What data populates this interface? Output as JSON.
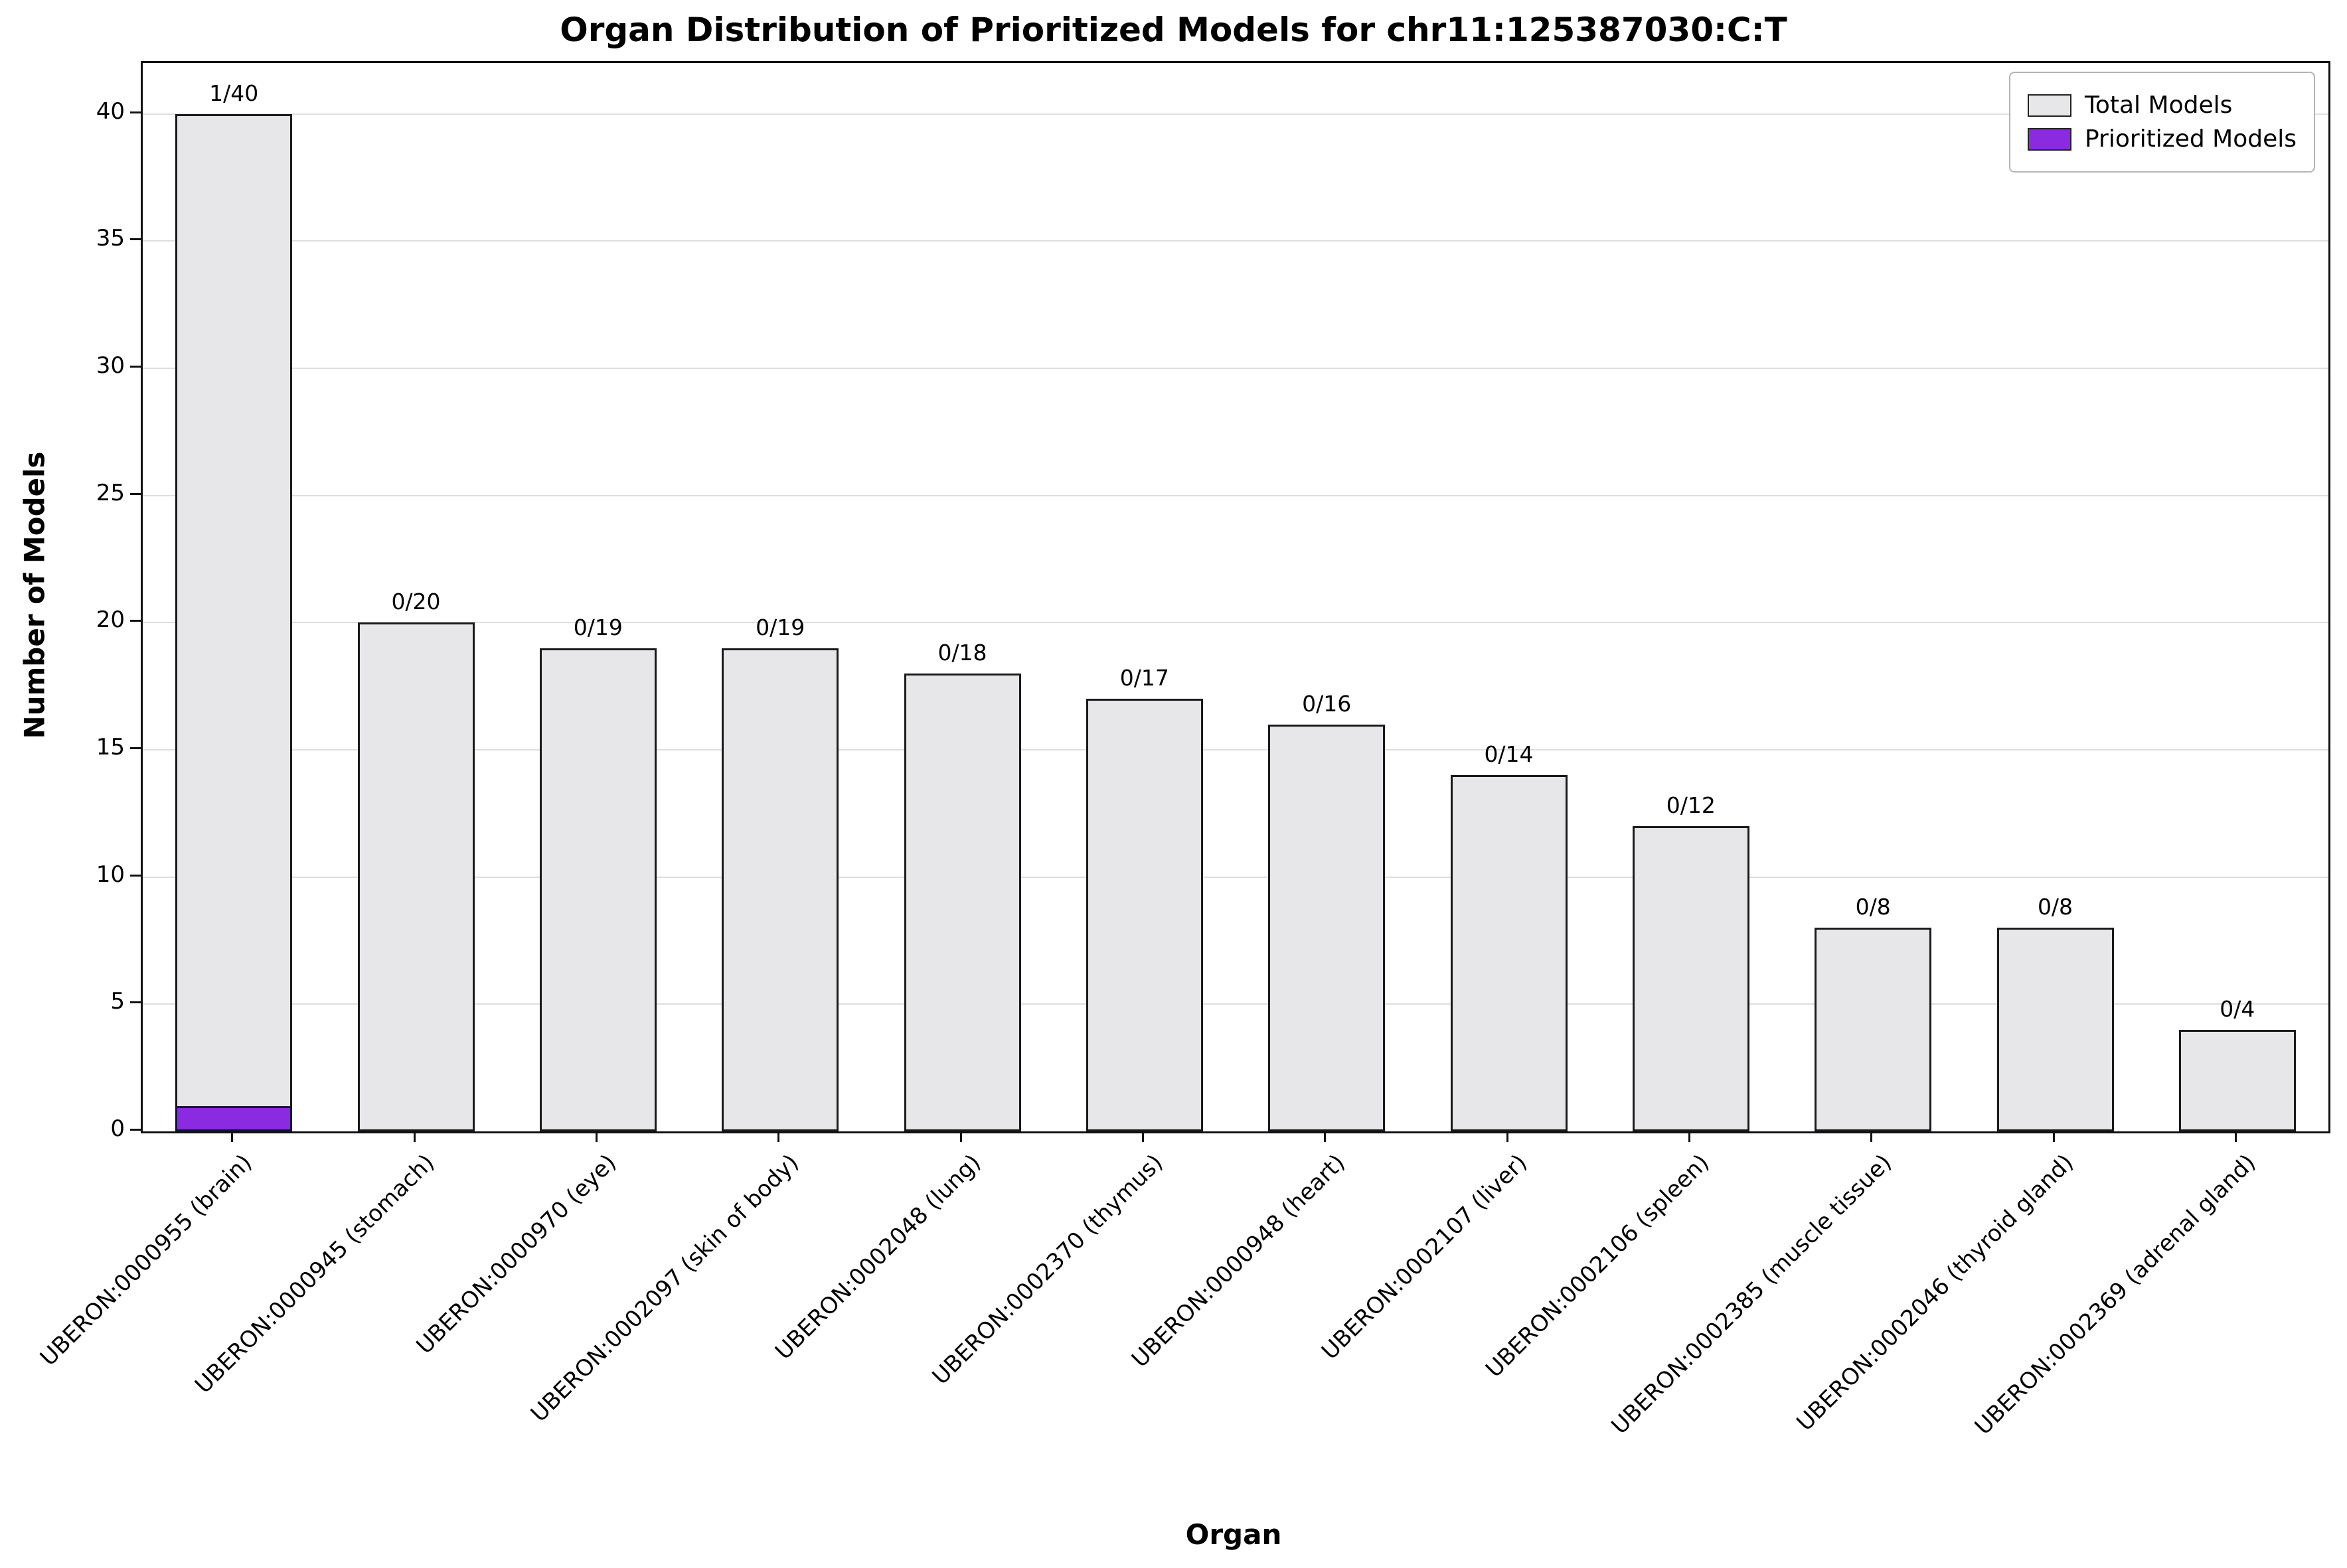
{
  "chart_data": {
    "type": "bar",
    "title": "Organ Distribution of Prioritized Models for chr11:125387030:C:T",
    "xlabel": "Organ",
    "ylabel": "Number of Models",
    "ylim": [
      0,
      42
    ],
    "yticks": [
      0,
      5,
      10,
      15,
      20,
      25,
      30,
      35,
      40
    ],
    "grid": true,
    "categories": [
      "UBERON:0000955 (brain)",
      "UBERON:0000945 (stomach)",
      "UBERON:0000970 (eye)",
      "UBERON:0002097 (skin of body)",
      "UBERON:0002048 (lung)",
      "UBERON:0002370 (thymus)",
      "UBERON:0000948 (heart)",
      "UBERON:0002107 (liver)",
      "UBERON:0002106 (spleen)",
      "UBERON:0002385 (muscle tissue)",
      "UBERON:0002046 (thyroid gland)",
      "UBERON:0002369 (adrenal gland)"
    ],
    "series": [
      {
        "name": "Total Models",
        "color": "#e7e7ea",
        "values": [
          40,
          20,
          19,
          19,
          18,
          17,
          16,
          14,
          12,
          8,
          8,
          4
        ]
      },
      {
        "name": "Prioritized Models",
        "color": "#8A2BE2",
        "values": [
          1,
          0,
          0,
          0,
          0,
          0,
          0,
          0,
          0,
          0,
          0,
          0
        ]
      }
    ],
    "bar_labels": [
      "1/40",
      "0/20",
      "0/19",
      "0/19",
      "0/18",
      "0/17",
      "0/16",
      "0/14",
      "0/12",
      "0/8",
      "0/8",
      "0/4"
    ],
    "legend": {
      "position": "top-right",
      "entries": [
        {
          "label": "Total Models",
          "color": "#e7e7ea"
        },
        {
          "label": "Prioritized Models",
          "color": "#8A2BE2"
        }
      ]
    }
  }
}
